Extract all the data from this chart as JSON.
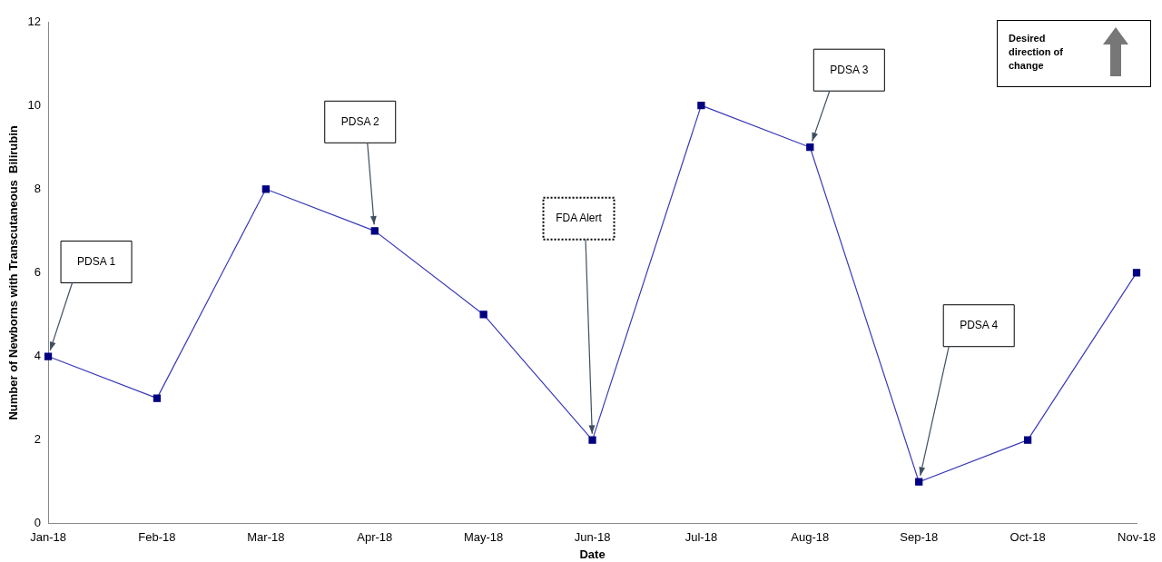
{
  "chart_data": {
    "type": "line",
    "xlabel": "Date",
    "ylabel": "Number of Newborns with Transcutaneous  Bilirubin",
    "categories": [
      "Jan-18",
      "Feb-18",
      "Mar-18",
      "Apr-18",
      "May-18",
      "Jun-18",
      "Jul-18",
      "Aug-18",
      "Sep-18",
      "Oct-18",
      "Nov-18"
    ],
    "series": [
      {
        "color": "#000080",
        "values": [
          4,
          3,
          8,
          7,
          5,
          2,
          10,
          9,
          1,
          2,
          6
        ]
      }
    ],
    "ylim": [
      0,
      12
    ],
    "yticks": [
      0,
      2,
      4,
      6,
      8,
      10,
      12
    ],
    "marker": "square",
    "line_style": "solid",
    "grid": false,
    "legend": false,
    "annotations": [
      "PDSA 1",
      "PDSA 2",
      "FDA Alert",
      "PDSA 3",
      "PDSA 4",
      "Desired direction of change"
    ]
  }
}
